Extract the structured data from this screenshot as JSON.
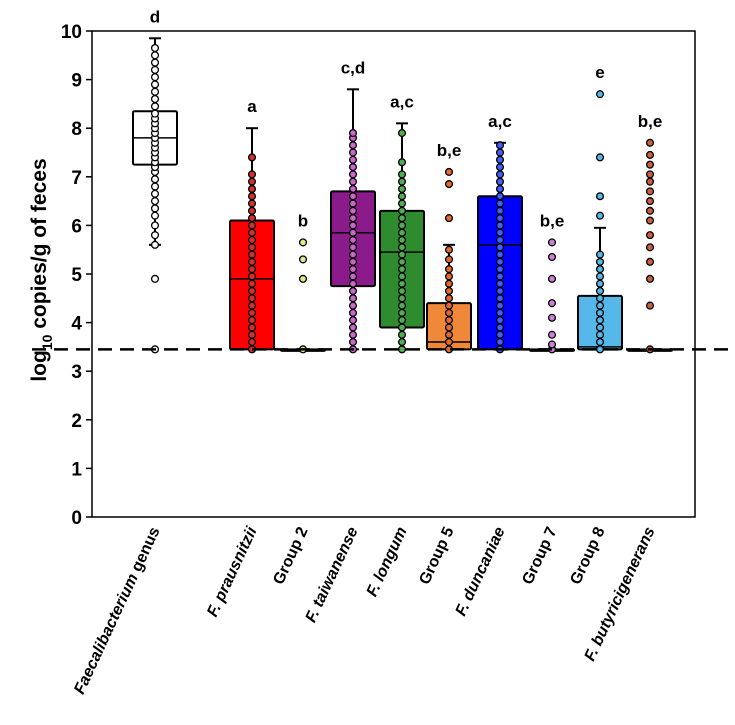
{
  "chart_data": {
    "type": "box",
    "ylabel": {
      "prefix": "log",
      "sub": "10",
      "suffix": " copies/g of feces"
    },
    "ylim": [
      0,
      10
    ],
    "yticks": [
      "0",
      "1",
      "2",
      "3",
      "4",
      "5",
      "6",
      "7",
      "8",
      "9",
      "10"
    ],
    "detection_limit": 3.45,
    "groups": [
      {
        "name": "genus",
        "label_italic": "Faecalibacterium",
        "label_normal": " genus",
        "color": "#ffffff",
        "dot": "#ffffff",
        "q1": 7.25,
        "median": 7.8,
        "q3": 8.35,
        "whisker_low": 5.6,
        "whisker_high": 9.85,
        "sig": "d",
        "points": [
          3.45,
          4.9,
          5.6,
          5.8,
          6.0,
          6.2,
          6.35,
          6.5,
          6.65,
          6.8,
          6.95,
          7.1,
          7.2,
          7.3,
          7.4,
          7.5,
          7.6,
          7.7,
          7.8,
          7.9,
          8.0,
          8.1,
          8.2,
          8.3,
          8.45,
          8.6,
          8.75,
          8.9,
          9.05,
          9.2,
          9.35,
          9.5,
          9.65
        ]
      },
      {
        "name": "prausnitzii",
        "label_italic": "F. prausnitzii",
        "label_normal": "",
        "color": "#ff0000",
        "dot": "#d03030",
        "q1": 3.45,
        "median": 4.9,
        "q3": 6.1,
        "whisker_low": 3.45,
        "whisker_high": 8.0,
        "sig": "a",
        "points": [
          3.45,
          3.6,
          3.75,
          3.9,
          4.05,
          4.2,
          4.35,
          4.5,
          4.65,
          4.8,
          4.95,
          5.1,
          5.25,
          5.4,
          5.55,
          5.7,
          5.85,
          6.0,
          6.15,
          6.3,
          6.45,
          6.6,
          6.75,
          6.9,
          7.05,
          7.4
        ]
      },
      {
        "name": "group2",
        "label_italic": "",
        "label_normal": "Group 2",
        "color": "#ffffff",
        "dot": "#e6e68a",
        "q1": 3.45,
        "median": 3.45,
        "q3": 3.45,
        "whisker_low": 3.45,
        "whisker_high": 3.45,
        "sig": "b",
        "points": [
          3.45,
          4.9,
          5.3,
          5.65
        ]
      },
      {
        "name": "taiwanense",
        "label_italic": "F. taiwanense",
        "label_normal": "",
        "color": "#8b1a8b",
        "dot": "#cc66cc",
        "q1": 4.75,
        "median": 5.85,
        "q3": 6.7,
        "whisker_low": 3.45,
        "whisker_high": 8.8,
        "sig": "c,d",
        "points": [
          3.45,
          3.6,
          3.75,
          3.9,
          4.05,
          4.2,
          4.35,
          4.5,
          4.65,
          4.8,
          4.95,
          5.1,
          5.25,
          5.4,
          5.55,
          5.7,
          5.85,
          6.0,
          6.15,
          6.3,
          6.45,
          6.6,
          6.75,
          6.9,
          7.05,
          7.2,
          7.35,
          7.5,
          7.65,
          7.8,
          7.9
        ]
      },
      {
        "name": "longum",
        "label_italic": "F. longum",
        "label_normal": "",
        "color": "#2e8b2e",
        "dot": "#55aa55",
        "q1": 3.9,
        "median": 5.45,
        "q3": 6.3,
        "whisker_low": 3.45,
        "whisker_high": 8.1,
        "sig": "a,c",
        "points": [
          3.45,
          3.6,
          3.75,
          3.9,
          4.05,
          4.2,
          4.35,
          4.5,
          4.65,
          4.8,
          4.95,
          5.1,
          5.25,
          5.4,
          5.55,
          5.7,
          5.85,
          6.0,
          6.15,
          6.3,
          6.45,
          6.6,
          6.75,
          6.9,
          7.05,
          7.3,
          7.9
        ]
      },
      {
        "name": "group5",
        "label_italic": "",
        "label_normal": "Group 5",
        "color": "#f0883a",
        "dot": "#e36a2a",
        "q1": 3.45,
        "median": 3.6,
        "q3": 4.4,
        "whisker_low": 3.45,
        "whisker_high": 5.6,
        "sig": "b,e",
        "points": [
          3.45,
          3.6,
          3.75,
          3.9,
          4.05,
          4.2,
          4.35,
          4.5,
          4.65,
          4.8,
          4.95,
          5.1,
          5.3,
          5.5,
          6.15,
          6.85,
          7.1
        ]
      },
      {
        "name": "duncaniae",
        "label_italic": "F. duncaniae",
        "label_normal": "",
        "color": "#0000ff",
        "dot": "#4060ff",
        "q1": 3.45,
        "median": 5.6,
        "q3": 6.6,
        "whisker_low": 3.45,
        "whisker_high": 7.7,
        "sig": "a,c",
        "points": [
          3.45,
          3.6,
          3.75,
          3.9,
          4.05,
          4.2,
          4.35,
          4.5,
          4.65,
          4.8,
          4.95,
          5.1,
          5.25,
          5.4,
          5.55,
          5.7,
          5.85,
          6.0,
          6.15,
          6.3,
          6.45,
          6.6,
          6.75,
          6.9,
          7.05,
          7.2,
          7.35,
          7.5,
          7.65
        ]
      },
      {
        "name": "group7",
        "label_italic": "",
        "label_normal": "Group 7",
        "color": "#ffffff",
        "dot": "#d080d8",
        "q1": 3.45,
        "median": 3.45,
        "q3": 3.45,
        "whisker_low": 3.45,
        "whisker_high": 3.45,
        "sig": "b,e",
        "points": [
          3.45,
          3.55,
          3.75,
          4.1,
          4.4,
          4.9,
          5.35,
          5.65
        ]
      },
      {
        "name": "group8",
        "label_italic": "",
        "label_normal": "Group 8",
        "color": "#55b8e8",
        "dot": "#55b8e8",
        "q1": 3.45,
        "median": 3.5,
        "q3": 4.55,
        "whisker_low": 3.45,
        "whisker_high": 5.95,
        "sig": "e",
        "points": [
          3.45,
          3.6,
          3.75,
          3.9,
          4.05,
          4.2,
          4.35,
          4.5,
          4.65,
          4.8,
          4.95,
          5.1,
          5.25,
          5.4,
          6.2,
          6.6,
          7.4,
          8.7
        ]
      },
      {
        "name": "butyricigenerans",
        "label_italic": "F. butyricigenerans",
        "label_normal": "",
        "color": "#ffffff",
        "dot": "#c86040",
        "q1": 3.45,
        "median": 3.45,
        "q3": 3.45,
        "whisker_low": 3.45,
        "whisker_high": 3.45,
        "sig": "b,e",
        "points": [
          3.45,
          4.35,
          4.9,
          5.25,
          5.55,
          5.8,
          6.1,
          6.3,
          6.5,
          6.7,
          6.9,
          7.05,
          7.25,
          7.45,
          7.7
        ]
      }
    ]
  }
}
